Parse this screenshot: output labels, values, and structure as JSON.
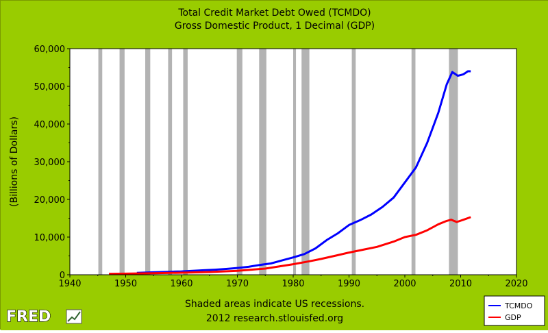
{
  "colors": {
    "background": "#99cc00",
    "plot_background": "#ffffff",
    "recession_shade": "#b3b3b3",
    "tcmdo": "#0000ff",
    "gdp": "#ff0000"
  },
  "logo": {
    "text": "FRED",
    "icon": "chart-line-icon"
  },
  "footer": {
    "note": "Shaded areas indicate US recessions.",
    "source": "2012 research.stlouisfed.org"
  },
  "chart_data": {
    "type": "line",
    "title": "Total Credit Market Debt Owed (TCMDO)",
    "subtitle": "Gross Domestic Product, 1 Decimal (GDP)",
    "xlabel": "",
    "ylabel": "(Billions of Dollars)",
    "xlim": [
      1940,
      2020
    ],
    "ylim": [
      0,
      60000
    ],
    "xticks": [
      1940,
      1950,
      1960,
      1970,
      1980,
      1990,
      2000,
      2010,
      2020
    ],
    "xtick_labels": [
      "1940",
      "1950",
      "1960",
      "1970",
      "1980",
      "1990",
      "2000",
      "2010",
      "2020"
    ],
    "yticks": [
      0,
      10000,
      20000,
      30000,
      40000,
      50000,
      60000
    ],
    "ytick_labels": [
      "0",
      "10,000",
      "20,000",
      "30,000",
      "40,000",
      "50,000",
      "60,000"
    ],
    "grid": false,
    "legend": "bottom-right",
    "recessions": [
      [
        1945.1,
        1945.8
      ],
      [
        1948.9,
        1949.8
      ],
      [
        1953.5,
        1954.4
      ],
      [
        1957.6,
        1958.3
      ],
      [
        1960.3,
        1961.1
      ],
      [
        1969.9,
        1970.9
      ],
      [
        1973.9,
        1975.2
      ],
      [
        1980.0,
        1980.5
      ],
      [
        1981.5,
        1982.9
      ],
      [
        1990.5,
        1991.2
      ],
      [
        2001.2,
        2001.9
      ],
      [
        2007.9,
        2009.5
      ]
    ],
    "series": [
      {
        "name": "TCMDO",
        "color": "#0000ff",
        "points": [
          [
            1952.0,
            500
          ],
          [
            1955.0,
            650
          ],
          [
            1958.0,
            800
          ],
          [
            1960.0,
            900
          ],
          [
            1962.0,
            1050
          ],
          [
            1964.0,
            1200
          ],
          [
            1966.0,
            1350
          ],
          [
            1968.0,
            1550
          ],
          [
            1970.0,
            1800
          ],
          [
            1972.0,
            2100
          ],
          [
            1974.0,
            2600
          ],
          [
            1976.0,
            3000
          ],
          [
            1978.0,
            3800
          ],
          [
            1980.0,
            4600
          ],
          [
            1982.0,
            5500
          ],
          [
            1984.0,
            7000
          ],
          [
            1986.0,
            9200
          ],
          [
            1988.0,
            11000
          ],
          [
            1990.0,
            13200
          ],
          [
            1992.0,
            14500
          ],
          [
            1994.0,
            16000
          ],
          [
            1996.0,
            18000
          ],
          [
            1998.0,
            20500
          ],
          [
            2000.0,
            24500
          ],
          [
            2002.0,
            28500
          ],
          [
            2004.0,
            35000
          ],
          [
            2006.0,
            43000
          ],
          [
            2007.5,
            50500
          ],
          [
            2008.5,
            53800
          ],
          [
            2009.5,
            52800
          ],
          [
            2010.5,
            53200
          ],
          [
            2011.3,
            54000
          ],
          [
            2011.8,
            54000
          ]
        ]
      },
      {
        "name": "GDP",
        "color": "#ff0000",
        "points": [
          [
            1947.0,
            250
          ],
          [
            1950.0,
            290
          ],
          [
            1955.0,
            420
          ],
          [
            1960.0,
            540
          ],
          [
            1965.0,
            720
          ],
          [
            1970.0,
            1040
          ],
          [
            1975.0,
            1640
          ],
          [
            1980.0,
            2800
          ],
          [
            1983.0,
            3600
          ],
          [
            1985.0,
            4200
          ],
          [
            1988.0,
            5200
          ],
          [
            1990.0,
            5900
          ],
          [
            1993.0,
            6800
          ],
          [
            1995.0,
            7400
          ],
          [
            1998.0,
            8800
          ],
          [
            2000.0,
            10000
          ],
          [
            2002.0,
            10600
          ],
          [
            2004.0,
            11800
          ],
          [
            2006.0,
            13400
          ],
          [
            2007.5,
            14300
          ],
          [
            2008.3,
            14600
          ],
          [
            2009.3,
            14000
          ],
          [
            2010.5,
            14600
          ],
          [
            2011.8,
            15300
          ]
        ]
      }
    ]
  }
}
